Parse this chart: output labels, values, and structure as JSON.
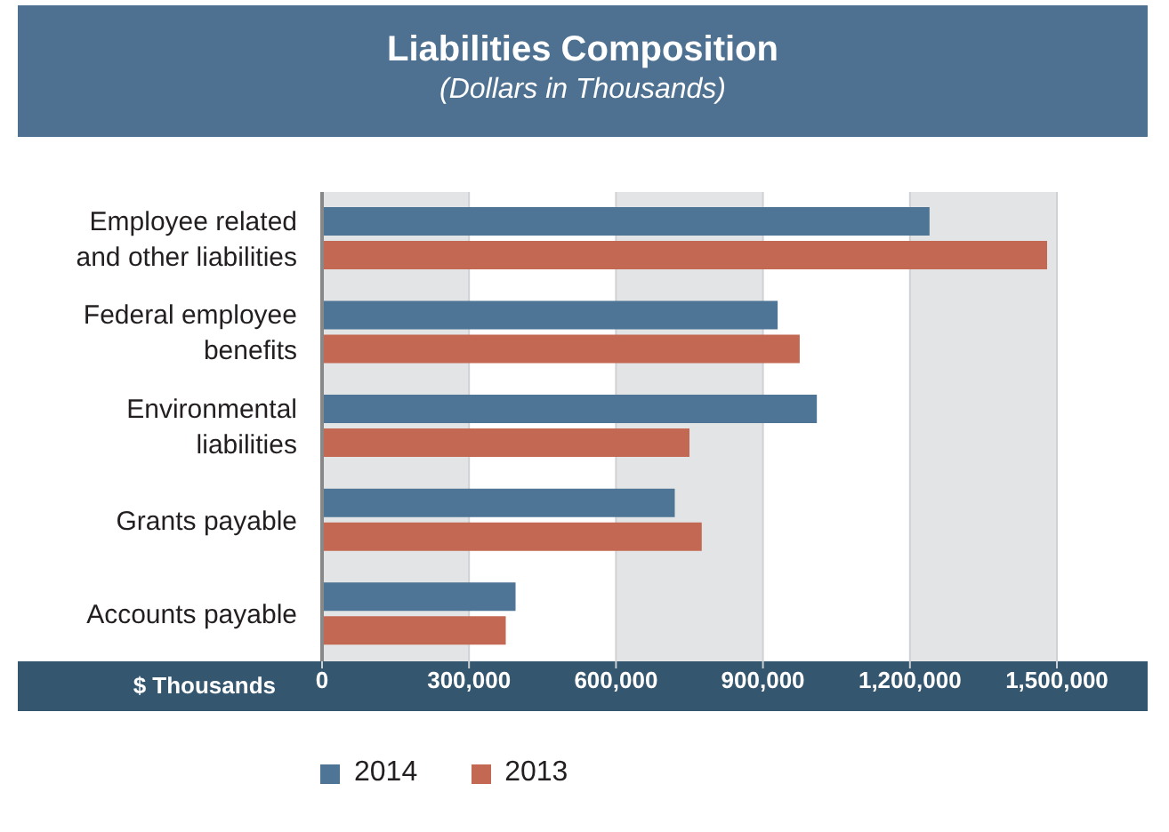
{
  "chart_data": {
    "type": "bar",
    "orientation": "horizontal",
    "title": "Liabilities Composition",
    "subtitle": "(Dollars in Thousands)",
    "xlabel": "$ Thousands",
    "categories": [
      "Employee related and other liabilities",
      "Federal employee benefits",
      "Environmental liabilities",
      "Grants payable",
      "Accounts payable"
    ],
    "series": [
      {
        "name": "2014",
        "color": "#4e7595",
        "values": [
          1240000,
          930000,
          1010000,
          720000,
          395000
        ]
      },
      {
        "name": "2013",
        "color": "#c36852",
        "values": [
          1480000,
          975000,
          750000,
          775000,
          375000
        ]
      }
    ],
    "xlim": [
      0,
      1500000
    ],
    "xticks": [
      0,
      {
        "value": 300000,
        "label": "300,000"
      },
      {
        "value": 600000,
        "label": "600,000"
      },
      {
        "value": 900000,
        "label": "900,000"
      },
      {
        "value": 1200000,
        "label": "1,200,000"
      },
      {
        "value": 1500000,
        "label": "1,500,000"
      }
    ],
    "grid": "x",
    "legend": "bottom"
  }
}
